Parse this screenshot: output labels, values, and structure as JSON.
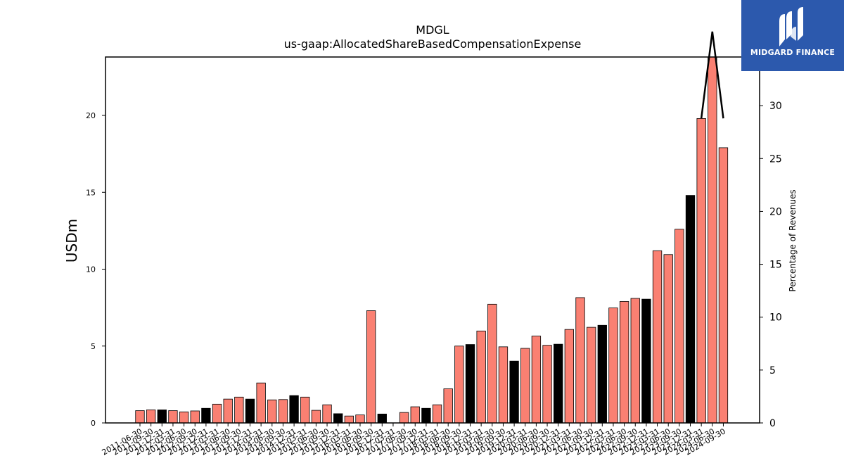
{
  "logo": {
    "text": "MIDGARD FINANCE",
    "background": "#2c59ad"
  },
  "chart_data": {
    "type": "bar",
    "title": "MDGL",
    "subtitle": "us-gaap:AllocatedShareBasedCompensationExpense",
    "ylabel": "USDm",
    "y2label": "Percentage of Revenues",
    "ylim": [
      0,
      23.8
    ],
    "y2lim": [
      0,
      34.6
    ],
    "yticks": [
      0,
      5,
      10,
      15,
      20
    ],
    "y2ticks": [
      0,
      5,
      10,
      15,
      20,
      25,
      30
    ],
    "grid": false,
    "colors": {
      "quarter": "#fa8072",
      "annual": "#000000",
      "line": "#000000"
    },
    "categories": [
      "2011-06-30",
      "2011-09-30",
      "2011-12-31",
      "2012-03-31",
      "2012-06-30",
      "2012-09-30",
      "2012-12-31",
      "2013-03-31",
      "2013-06-30",
      "2013-09-30",
      "2013-12-31",
      "2014-03-31",
      "2014-06-30",
      "2014-09-30",
      "2014-12-31",
      "2015-03-31",
      "2015-06-30",
      "2015-09-30",
      "2015-12-31",
      "2016-03-31",
      "2016-06-30",
      "2016-09-30",
      "2016-12-31",
      "2017-03-31",
      "2017-06-30",
      "2017-09-30",
      "2017-12-31",
      "2018-03-31",
      "2018-06-30",
      "2018-09-30",
      "2018-12-31",
      "2019-03-31",
      "2019-06-30",
      "2019-09-30",
      "2019-12-31",
      "2020-03-31",
      "2020-06-30",
      "2020-09-30",
      "2020-12-31",
      "2021-03-31",
      "2021-06-30",
      "2021-09-30",
      "2021-12-31",
      "2022-03-31",
      "2022-06-30",
      "2022-09-30",
      "2022-12-31",
      "2023-03-31",
      "2023-06-30",
      "2023-09-30",
      "2023-12-31",
      "2024-03-31",
      "2024-06-30",
      "2024-09-30"
    ],
    "values": [
      0.8,
      0.85,
      0.85,
      0.8,
      0.72,
      0.78,
      0.95,
      1.22,
      1.55,
      1.68,
      1.55,
      2.6,
      1.5,
      1.52,
      1.78,
      1.68,
      0.82,
      1.18,
      0.6,
      0.45,
      0.52,
      7.3,
      0.58,
      0.0,
      0.68,
      1.05,
      0.95,
      1.18,
      2.22,
      5.0,
      5.1,
      5.98,
      7.72,
      4.95,
      4.02,
      4.85,
      5.65,
      5.05,
      5.12,
      6.08,
      8.15,
      6.22,
      6.35,
      7.48,
      7.9,
      8.1,
      8.05,
      11.2,
      10.95,
      12.6,
      14.8,
      19.8,
      23.8,
      17.9
    ],
    "annual": [
      false,
      false,
      true,
      false,
      false,
      false,
      true,
      false,
      false,
      false,
      true,
      false,
      false,
      false,
      true,
      false,
      false,
      false,
      true,
      false,
      false,
      false,
      true,
      false,
      false,
      false,
      true,
      false,
      false,
      false,
      true,
      false,
      false,
      false,
      true,
      false,
      false,
      false,
      true,
      false,
      false,
      false,
      true,
      false,
      false,
      false,
      true,
      false,
      false,
      false,
      true,
      false,
      false,
      false
    ],
    "line_series": {
      "name": "",
      "x": [
        "2024-03-31",
        "2024-06-30",
        "2024-09-30"
      ],
      "values": [
        28.8,
        37.0,
        28.8
      ]
    }
  }
}
